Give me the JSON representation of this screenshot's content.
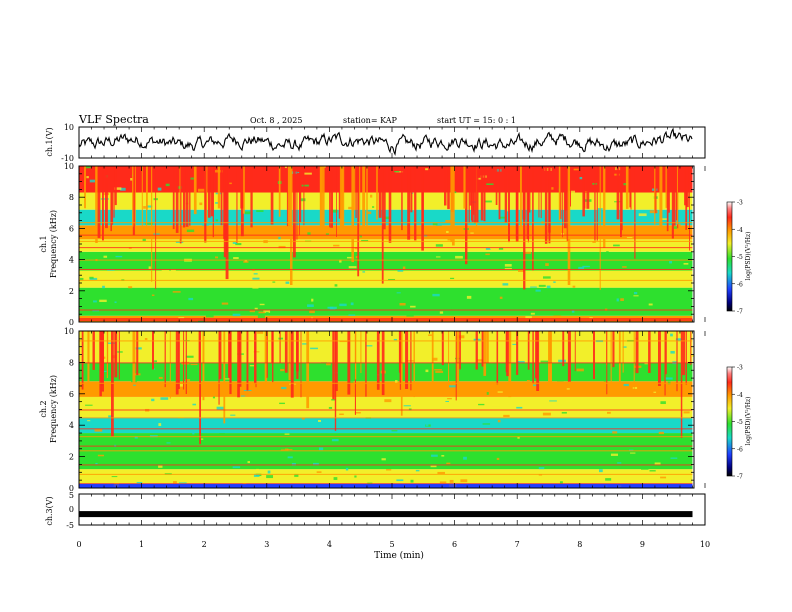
{
  "header": {
    "title": "VLF Spectra",
    "date": "Oct. 8 , 2025",
    "station": "station= KAP",
    "start_ut": "start UT =  15: 0  : 1"
  },
  "chart_data": [
    {
      "id": "ch1_waveform",
      "type": "line",
      "ylabel": "ch.1(V)",
      "ylim": [
        -10,
        10
      ],
      "yticks": [
        "10",
        "-10"
      ],
      "description_series": "ch.1 time-domain voltage, oscillating roughly between -8 and 8 V"
    },
    {
      "id": "ch1_spectrogram",
      "type": "heatmap",
      "ylabel": "ch.1\nFrequency (kHz)",
      "ylabel_lines": [
        "ch.1",
        "Frequency (kHz)"
      ],
      "ylim": [
        0,
        10
      ],
      "yticks": [
        "10",
        "8",
        "6",
        "4",
        "2",
        "0"
      ],
      "colorbar": {
        "label": "log(PSD)(V²/Hz)",
        "range": [
          -7,
          -3
        ],
        "ticks": [
          "-3",
          "-4",
          "-5",
          "-6",
          "-7"
        ]
      }
    },
    {
      "id": "ch2_spectrogram",
      "type": "heatmap",
      "ylabel_lines": [
        "ch.2",
        "Frequency (kHz)"
      ],
      "ylim": [
        0,
        10
      ],
      "yticks": [
        "10",
        "8",
        "6",
        "4",
        "2",
        "0"
      ],
      "colorbar": {
        "label": "log(PSD)(V²/Hz)",
        "range": [
          -7,
          -3
        ],
        "ticks": [
          "-3",
          "-4",
          "-5",
          "-6",
          "-7"
        ]
      }
    },
    {
      "id": "ch3_waveform",
      "type": "line",
      "ylabel": "ch.3(V)",
      "ylim": [
        -5,
        5
      ],
      "yticks": [
        "5",
        "0",
        "-5"
      ],
      "level": -1.5
    }
  ],
  "xaxis": {
    "label": "Time  (min)",
    "range": [
      0,
      10
    ],
    "data_end": 9.8,
    "ticks": [
      "0",
      "1",
      "2",
      "3",
      "4",
      "5",
      "6",
      "7",
      "8",
      "9",
      "10"
    ]
  },
  "colors": {
    "red": "#ff2a1a",
    "orange": "#ff9a00",
    "yellow": "#f2ef2a",
    "green": "#2ee02e",
    "cyan": "#19d9c8",
    "blue": "#1f3fff",
    "black": "#000000"
  }
}
